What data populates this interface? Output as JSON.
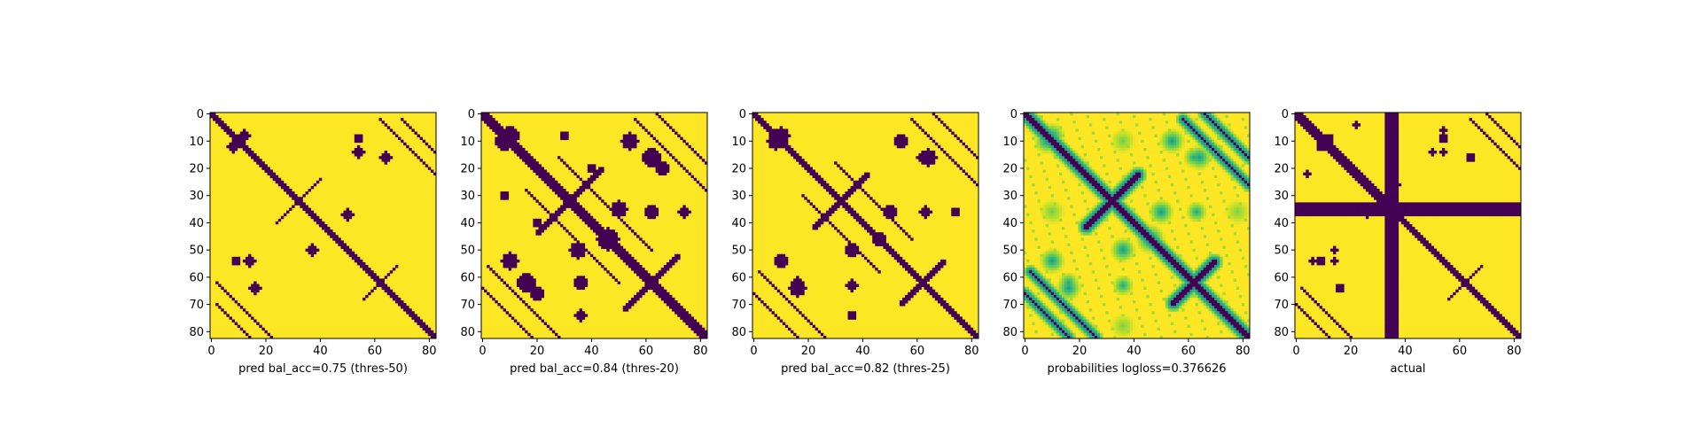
{
  "figure": {
    "colors": {
      "low": "#440154",
      "high": "#fde725",
      "mid_cyan": "#21918c",
      "mid_green": "#5ec962"
    }
  },
  "chart_data": [
    {
      "type": "heatmap",
      "title": "",
      "xlabel": "pred bal_acc=0.75 (thres-50)",
      "ylabel": "",
      "n": 83,
      "xlim": [
        0,
        82
      ],
      "ylim": [
        82,
        0
      ],
      "xticks": [
        0,
        20,
        40,
        60,
        80
      ],
      "yticks": [
        0,
        10,
        20,
        30,
        40,
        50,
        60,
        70,
        80
      ],
      "binary": true,
      "diag_halfwidth": 1.4,
      "bands": [
        {
          "offset": 60,
          "start": 62,
          "end": 82,
          "halfwidth": 0.5
        },
        {
          "offset": 68,
          "start": 70,
          "end": 82,
          "halfwidth": 0.5
        },
        {
          "offset": -62,
          "start": 62,
          "end": 82,
          "halfwidth": 0.5
        },
        {
          "offset": -68,
          "start": 68,
          "end": 82,
          "halfwidth": 0.5
        }
      ],
      "antidiag": [
        {
          "sum": 64,
          "start": 24,
          "end": 40,
          "halfwidth": 0.9
        },
        {
          "sum": 124,
          "start": 56,
          "end": 68,
          "halfwidth": 0.9
        }
      ],
      "blobs": [
        {
          "row": 8,
          "col": 12,
          "r": 2.2
        },
        {
          "row": 14,
          "col": 54,
          "r": 2.0
        },
        {
          "row": 37,
          "col": 50,
          "r": 2.0
        },
        {
          "row": 50,
          "col": 37,
          "r": 2.0
        },
        {
          "row": 54,
          "col": 14,
          "r": 2.0
        },
        {
          "row": 64,
          "col": 16,
          "r": 2.0
        },
        {
          "row": 9,
          "col": 54,
          "r": 1.6
        }
      ],
      "mid_blobs": []
    },
    {
      "type": "heatmap",
      "title": "",
      "xlabel": "pred bal_acc=0.84 (thres-20)",
      "ylabel": "",
      "n": 83,
      "xlim": [
        0,
        82
      ],
      "ylim": [
        82,
        0
      ],
      "xticks": [
        0,
        20,
        40,
        60,
        80
      ],
      "yticks": [
        0,
        10,
        20,
        30,
        40,
        50,
        60,
        70,
        80
      ],
      "binary": true,
      "diag_halfwidth": 2.0,
      "bands": [
        {
          "offset": 54,
          "start": 56,
          "end": 82,
          "halfwidth": 0.8
        },
        {
          "offset": 64,
          "start": 64,
          "end": 82,
          "halfwidth": 0.8
        },
        {
          "offset": -56,
          "start": 56,
          "end": 82,
          "halfwidth": 0.8
        },
        {
          "offset": -64,
          "start": 64,
          "end": 82,
          "halfwidth": 0.8
        },
        {
          "offset": 12,
          "start": 28,
          "end": 50,
          "halfwidth": 0.9
        },
        {
          "offset": -12,
          "start": 28,
          "end": 50,
          "halfwidth": 0.9
        }
      ],
      "antidiag": [
        {
          "sum": 64,
          "start": 20,
          "end": 44,
          "halfwidth": 1.2
        },
        {
          "sum": 124,
          "start": 52,
          "end": 72,
          "halfwidth": 1.2
        }
      ],
      "blobs": [
        {
          "row": 8,
          "col": 10,
          "r": 3.5
        },
        {
          "row": 10,
          "col": 8,
          "r": 3.0
        },
        {
          "row": 10,
          "col": 54,
          "r": 3.0
        },
        {
          "row": 16,
          "col": 62,
          "r": 2.5
        },
        {
          "row": 35,
          "col": 50,
          "r": 3.0
        },
        {
          "row": 46,
          "col": 46,
          "r": 4.0
        },
        {
          "row": 50,
          "col": 35,
          "r": 3.0
        },
        {
          "row": 54,
          "col": 10,
          "r": 3.0
        },
        {
          "row": 62,
          "col": 16,
          "r": 3.5
        },
        {
          "row": 66,
          "col": 20,
          "r": 2.5
        },
        {
          "row": 62,
          "col": 36,
          "r": 2.5
        },
        {
          "row": 74,
          "col": 36,
          "r": 2.2
        },
        {
          "row": 30,
          "col": 8,
          "r": 1.5
        },
        {
          "row": 20,
          "col": 40,
          "r": 1.5
        }
      ],
      "mid_blobs": []
    },
    {
      "type": "heatmap",
      "title": "",
      "xlabel": "pred bal_acc=0.82 (thres-25)",
      "ylabel": "",
      "n": 83,
      "xlim": [
        0,
        82
      ],
      "ylim": [
        82,
        0
      ],
      "xticks": [
        0,
        20,
        40,
        60,
        80
      ],
      "yticks": [
        0,
        10,
        20,
        30,
        40,
        50,
        60,
        70,
        80
      ],
      "binary": true,
      "diag_halfwidth": 1.8,
      "bands": [
        {
          "offset": 56,
          "start": 58,
          "end": 82,
          "halfwidth": 0.7
        },
        {
          "offset": 66,
          "start": 66,
          "end": 82,
          "halfwidth": 0.7
        },
        {
          "offset": -58,
          "start": 58,
          "end": 82,
          "halfwidth": 0.7
        },
        {
          "offset": -66,
          "start": 66,
          "end": 82,
          "halfwidth": 0.7
        },
        {
          "offset": 12,
          "start": 30,
          "end": 46,
          "halfwidth": 0.7
        },
        {
          "offset": -12,
          "start": 30,
          "end": 46,
          "halfwidth": 0.7
        }
      ],
      "antidiag": [
        {
          "sum": 64,
          "start": 22,
          "end": 42,
          "halfwidth": 1.0
        },
        {
          "sum": 124,
          "start": 54,
          "end": 70,
          "halfwidth": 1.0
        }
      ],
      "blobs": [
        {
          "row": 8,
          "col": 10,
          "r": 3.0
        },
        {
          "row": 10,
          "col": 54,
          "r": 2.6
        },
        {
          "row": 16,
          "col": 62,
          "r": 2.0
        },
        {
          "row": 36,
          "col": 50,
          "r": 2.6
        },
        {
          "row": 50,
          "col": 36,
          "r": 2.6
        },
        {
          "row": 54,
          "col": 10,
          "r": 2.6
        },
        {
          "row": 64,
          "col": 16,
          "r": 3.0
        },
        {
          "row": 63,
          "col": 36,
          "r": 2.0
        },
        {
          "row": 74,
          "col": 36,
          "r": 1.6
        },
        {
          "row": 46,
          "col": 46,
          "r": 2.5
        }
      ],
      "mid_blobs": []
    },
    {
      "type": "heatmap",
      "title": "",
      "xlabel": "probabilities logloss=0.376626",
      "ylabel": "",
      "n": 83,
      "xlim": [
        0,
        82
      ],
      "ylim": [
        82,
        0
      ],
      "xticks": [
        0,
        20,
        40,
        60,
        80
      ],
      "yticks": [
        0,
        10,
        20,
        30,
        40,
        50,
        60,
        70,
        80
      ],
      "binary": false,
      "diag_halfwidth": 1.6,
      "bands": [
        {
          "offset": 56,
          "start": 58,
          "end": 82,
          "halfwidth": 0.6
        },
        {
          "offset": 66,
          "start": 66,
          "end": 82,
          "halfwidth": 0.6
        },
        {
          "offset": -58,
          "start": 58,
          "end": 82,
          "halfwidth": 0.6
        },
        {
          "offset": -66,
          "start": 66,
          "end": 82,
          "halfwidth": 0.6
        }
      ],
      "antidiag": [
        {
          "sum": 64,
          "start": 22,
          "end": 42,
          "halfwidth": 1.0
        },
        {
          "sum": 124,
          "start": 54,
          "end": 70,
          "halfwidth": 1.0
        }
      ],
      "blobs": [],
      "mid_blobs": [
        {
          "row": 8,
          "col": 10,
          "r": 3.0,
          "level": 0.55
        },
        {
          "row": 10,
          "col": 54,
          "r": 3.0,
          "level": 0.55
        },
        {
          "row": 16,
          "col": 62,
          "r": 2.5,
          "level": 0.6
        },
        {
          "row": 36,
          "col": 50,
          "r": 3.0,
          "level": 0.55
        },
        {
          "row": 50,
          "col": 36,
          "r": 3.0,
          "level": 0.55
        },
        {
          "row": 54,
          "col": 10,
          "r": 3.0,
          "level": 0.55
        },
        {
          "row": 64,
          "col": 16,
          "r": 3.0,
          "level": 0.55
        },
        {
          "row": 63,
          "col": 36,
          "r": 2.5,
          "level": 0.6
        },
        {
          "row": 46,
          "col": 46,
          "r": 3.5,
          "level": 0.5
        },
        {
          "row": 36,
          "col": 10,
          "r": 3.0,
          "level": 0.78
        },
        {
          "row": 10,
          "col": 36,
          "r": 3.0,
          "level": 0.78
        },
        {
          "row": 36,
          "col": 78,
          "r": 3.0,
          "level": 0.8
        },
        {
          "row": 78,
          "col": 36,
          "r": 3.0,
          "level": 0.8
        },
        {
          "row": 20,
          "col": 20,
          "r": 3.0,
          "level": 0.8
        }
      ]
    },
    {
      "type": "heatmap",
      "title": "",
      "xlabel": "actual",
      "ylabel": "",
      "n": 83,
      "xlim": [
        0,
        82
      ],
      "ylim": [
        82,
        0
      ],
      "xticks": [
        0,
        20,
        40,
        60,
        80
      ],
      "yticks": [
        0,
        10,
        20,
        30,
        40,
        50,
        60,
        70,
        80
      ],
      "binary": true,
      "diag_halfwidth": 1.0,
      "masked_index": {
        "start": 33,
        "end": 37
      },
      "bands": [
        {
          "offset": 2,
          "start": 2,
          "end": 30,
          "halfwidth": 0.4
        },
        {
          "offset": -2,
          "start": 2,
          "end": 30,
          "halfwidth": 0.4
        },
        {
          "offset": 62,
          "start": 64,
          "end": 82,
          "halfwidth": 0.4
        },
        {
          "offset": 70,
          "start": 70,
          "end": 82,
          "halfwidth": 0.4
        },
        {
          "offset": -64,
          "start": 64,
          "end": 82,
          "halfwidth": 0.4
        },
        {
          "offset": -70,
          "start": 70,
          "end": 82,
          "halfwidth": 0.4
        }
      ],
      "antidiag": [
        {
          "sum": 64,
          "start": 26,
          "end": 40,
          "halfwidth": 0.6
        },
        {
          "sum": 124,
          "start": 56,
          "end": 68,
          "halfwidth": 0.6
        }
      ],
      "blobs": [
        {
          "row": 9,
          "col": 12,
          "r": 1.6
        },
        {
          "row": 9,
          "col": 54,
          "r": 1.6
        },
        {
          "row": 14,
          "col": 50,
          "r": 1.2
        },
        {
          "row": 54,
          "col": 14,
          "r": 1.2
        },
        {
          "row": 64,
          "col": 16,
          "r": 1.6
        },
        {
          "row": 54,
          "col": 6,
          "r": 1.0
        },
        {
          "row": 22,
          "col": 4,
          "r": 1.0
        }
      ],
      "mid_blobs": []
    }
  ]
}
